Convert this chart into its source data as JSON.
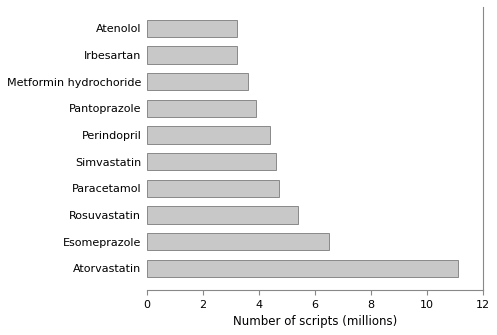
{
  "categories": [
    "Atenolol",
    "Irbesartan",
    "Metformin hydrochoride",
    "Pantoprazole",
    "Perindopril",
    "Simvastatin",
    "Paracetamol",
    "Rosuvastatin",
    "Esomeprazole",
    "Atorvastatin"
  ],
  "values": [
    3.2,
    3.2,
    3.6,
    3.9,
    4.4,
    4.6,
    4.7,
    5.4,
    6.5,
    11.1
  ],
  "bar_color": "#c8c8c8",
  "bar_edgecolor": "#666666",
  "xlabel": "Number of scripts (millions)",
  "xlim": [
    0,
    12
  ],
  "xticks": [
    0,
    2,
    4,
    6,
    8,
    10,
    12
  ],
  "background_color": "#ffffff",
  "label_fontsize": 8,
  "xlabel_fontsize": 8.5,
  "tick_fontsize": 8,
  "bar_height": 0.65
}
